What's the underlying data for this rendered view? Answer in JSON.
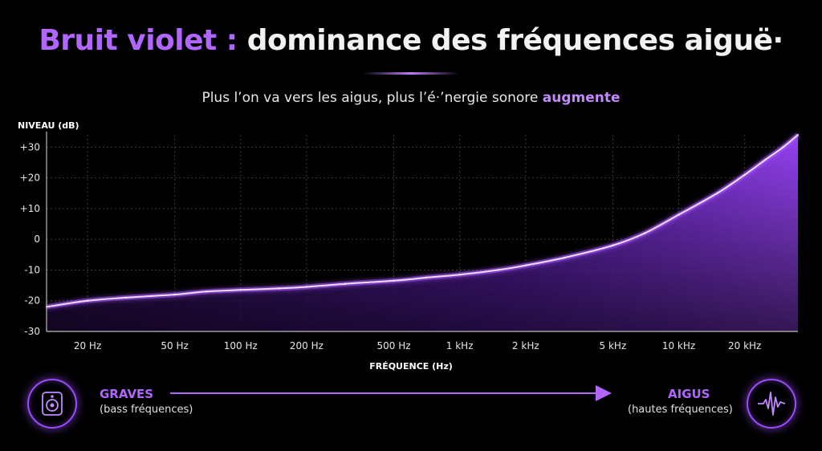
{
  "header": {
    "title_accent": "Bruit violet :",
    "title_rest": " dominance des fréquences aiguë·",
    "subtitle_pre": "Plus l’on va vers les aigus, plus l’é·’nergie sonore ",
    "subtitle_accent": "augmente"
  },
  "footer": {
    "left_label": "GRAVES",
    "left_sub": "(bass fréquences)",
    "right_label": "AIGUS",
    "right_sub": "(hautes fréquences)",
    "left_icon": "speaker-icon",
    "right_icon": "waveform-icon"
  },
  "colors": {
    "accent": "#b066ff",
    "line": "#f0dcff",
    "fill": "#8a2cff"
  },
  "chart_data": {
    "type": "area",
    "xscale": "log",
    "ylabel": "NIVEAU (dB)",
    "xlabel": "FRÉQUENCE (Hz)",
    "ylim": [
      -30,
      34
    ],
    "xlim": [
      13,
      35000
    ],
    "yticks": [
      {
        "value": 30,
        "label": "+30"
      },
      {
        "value": 20,
        "label": "+20"
      },
      {
        "value": 10,
        "label": "+10"
      },
      {
        "value": 0,
        "label": "0"
      },
      {
        "value": -10,
        "label": "-10"
      },
      {
        "value": -20,
        "label": "-20"
      },
      {
        "value": -30,
        "label": "-30"
      }
    ],
    "xticks": [
      {
        "value": 20,
        "label": "20 Hz"
      },
      {
        "value": 50,
        "label": "50 Hz"
      },
      {
        "value": 100,
        "label": "100 Hz"
      },
      {
        "value": 200,
        "label": "200 Hz"
      },
      {
        "value": 500,
        "label": "500 Hz"
      },
      {
        "value": 1000,
        "label": "1 kHz"
      },
      {
        "value": 2000,
        "label": "2 kHz"
      },
      {
        "value": 5000,
        "label": "5 kHz"
      },
      {
        "value": 10000,
        "label": "10 kHz"
      },
      {
        "value": 20000,
        "label": "20 kHz"
      }
    ],
    "grid": true,
    "series": [
      {
        "x": [
          13,
          20,
          30,
          50,
          70,
          100,
          150,
          200,
          300,
          500,
          700,
          1000,
          1500,
          2000,
          3000,
          5000,
          7000,
          10000,
          15000,
          20000,
          25000,
          30000,
          35000
        ],
        "values": [
          -22,
          -20,
          -19,
          -18,
          -17,
          -16.5,
          -16,
          -15.5,
          -14.5,
          -13.5,
          -12.5,
          -11.5,
          -10,
          -8.5,
          -6,
          -2,
          2,
          8,
          15,
          21,
          26,
          30,
          34
        ]
      }
    ]
  }
}
